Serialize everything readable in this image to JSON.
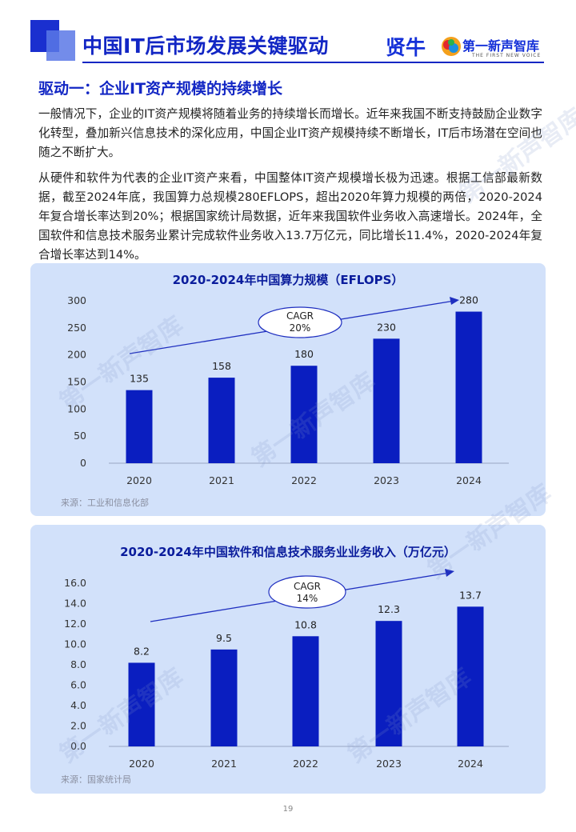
{
  "header": {
    "title": "中国IT后市场发展关键驱动",
    "brand_primary": "贤牛",
    "brand_secondary": "第一新声智库",
    "brand_tagline": "THE FIRST NEW VOICE"
  },
  "section": {
    "heading": "驱动一：企业IT资产规模的持续增长",
    "paragraphs": [
      "一般情况下，企业的IT资产规模将随着业务的持续增长而增长。近年来我国不断支持鼓励企业数字化转型，叠加新兴信息技术的深化应用，中国企业IT资产规模持续不断增长，IT后市场潜在空间也随之不断扩大。",
      "从硬件和软件为代表的企业IT资产来看，中国整体IT资产规模增长极为迅速。根据工信部最新数据，截至2024年底，我国算力总规模280EFLOPS，超出2020年算力规模的两倍，2020-2024年复合增长率达到20%；根据国家统计局数据，近年来我国软件业务收入高速增长。2024年，全国软件和信息技术服务业累计完成软件业务收入13.7万亿元，同比增长11.4%，2020-2024年复合增长率达到14%。"
    ]
  },
  "chart_data": [
    {
      "type": "bar",
      "title": "2020-2024年中国算力规模（EFLOPS）",
      "categories": [
        "2020",
        "2021",
        "2022",
        "2023",
        "2024"
      ],
      "values": [
        135,
        158,
        180,
        230,
        280
      ],
      "value_labels": [
        "135",
        "158",
        "180",
        "230",
        "280"
      ],
      "yticks": [
        "0",
        "50",
        "100",
        "150",
        "200",
        "250",
        "300"
      ],
      "ylim": [
        0,
        300
      ],
      "annotation": {
        "line1": "CAGR",
        "line2": "20%"
      },
      "source": "来源：工业和信息化部",
      "colors": {
        "bar": "#0a1ec0",
        "panel": "#d2e1fa",
        "title": "#0a1c9c"
      }
    },
    {
      "type": "bar",
      "title": "2020-2024年中国软件和信息技术服务业业务收入（万亿元）",
      "categories": [
        "2020",
        "2021",
        "2022",
        "2023",
        "2024"
      ],
      "values": [
        8.2,
        9.5,
        10.8,
        12.3,
        13.7
      ],
      "value_labels": [
        "8.2",
        "9.5",
        "10.8",
        "12.3",
        "13.7"
      ],
      "yticks": [
        "0.0",
        "2.0",
        "4.0",
        "6.0",
        "8.0",
        "10.0",
        "12.0",
        "14.0",
        "16.0"
      ],
      "ylim": [
        0,
        16
      ],
      "annotation": {
        "line1": "CAGR",
        "line2": "14%"
      },
      "source": "来源：国家统计局",
      "colors": {
        "bar": "#0a1ec0",
        "panel": "#d2e1fa",
        "title": "#0a1c9c"
      }
    }
  ],
  "footer": {
    "page_number": "19"
  }
}
